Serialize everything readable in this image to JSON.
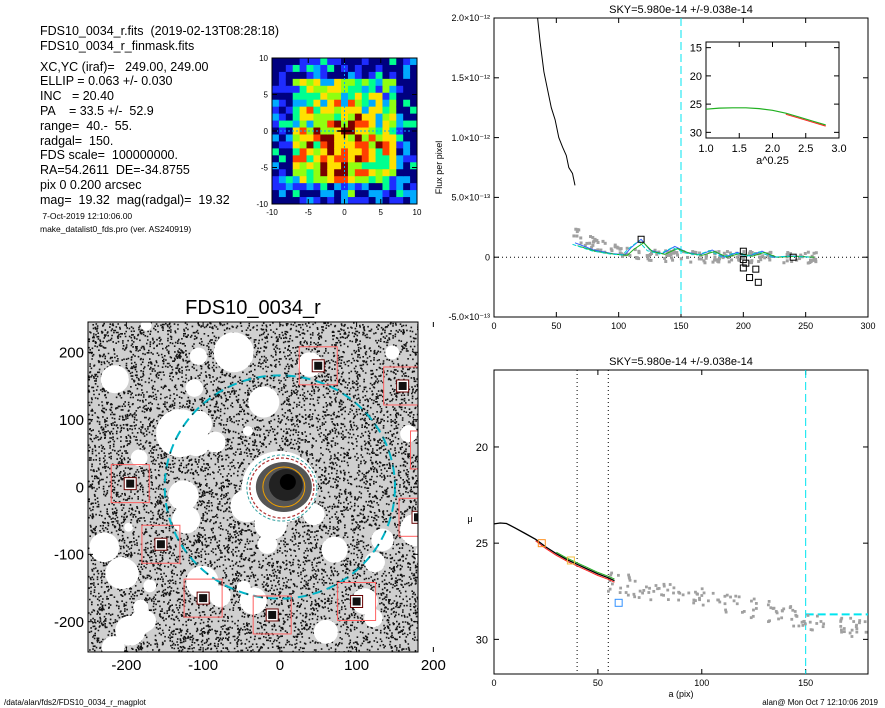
{
  "header_info": {
    "lines_top": [
      "FDS10_0034_r.fits  (2019-02-13T08:28:18)",
      "FDS10_0034_r_finmask.fits"
    ],
    "lines_params": [
      "XC,YC (iraf)=   249.00, 249.00",
      "ELLIP = 0.063 +/- 0.030",
      "INC   = 20.40",
      "PA    = 33.5 +/-  52.9",
      "range=  40.-  55.",
      "radgal=  150.",
      "FDS scale=  100000000.",
      "RA=54.2611  DE=-34.8755",
      "pix 0 0.200 arcsec",
      "mag=  19.32  mag(radgal)=  19.32"
    ],
    "date": " 7-Oct-2019 12:10:06.00",
    "program": "make_datalist0_fds.pro (ver. AS240919)"
  },
  "colors": {
    "sky_line": "#00e5f0",
    "profile_line": "#000000",
    "binned_blue": "#3060ff",
    "binned_green": "#20b020",
    "binned_cyan": "#00d0d0",
    "binned_orange": "#ff9020",
    "red": "#ff2020",
    "scatter_gray": "#a0a0a0",
    "box_red": "#ff6060"
  },
  "chart_data": [
    {
      "id": "thumbnail",
      "type": "heatmap",
      "title": "",
      "xlim": [
        -10,
        10
      ],
      "ylim": [
        -10,
        10
      ],
      "xticks": [
        -10,
        -5,
        0,
        5,
        10
      ],
      "yticks": [
        -10,
        -5,
        0,
        5,
        10
      ],
      "colormap": [
        "#000080",
        "#1e2cff",
        "#00aaff",
        "#00ff90",
        "#90ff10",
        "#ffe000",
        "#ff4000",
        "#7a0000"
      ]
    },
    {
      "id": "image",
      "type": "scatter",
      "title": "FDS10_0034_r",
      "xlim": [
        -250,
        180
      ],
      "ylim": [
        -245,
        245
      ],
      "xticks": [
        -200,
        -100,
        0,
        100,
        200
      ],
      "yticks": [
        -200,
        -100,
        0,
        100,
        200
      ],
      "sky_ellipse_radius": 150,
      "masked_stars": [
        {
          "x": -195,
          "y": 5
        },
        {
          "x": -155,
          "y": -85
        },
        {
          "x": -100,
          "y": -165
        },
        {
          "x": -10,
          "y": -190
        },
        {
          "x": 50,
          "y": 180
        },
        {
          "x": 100,
          "y": -170
        },
        {
          "x": 160,
          "y": 150
        },
        {
          "x": 195,
          "y": 55
        },
        {
          "x": 180,
          "y": -45
        }
      ]
    },
    {
      "id": "flux_profile",
      "type": "line",
      "title": "SKY=5.980e-14 +/-9.038e-14",
      "ylabel": "Flux per pixel",
      "xlim": [
        0,
        300
      ],
      "ylim": [
        -5e-13,
        2e-12
      ],
      "xticks": [
        0,
        50,
        100,
        150,
        200,
        250,
        300
      ],
      "ytick_labels": [
        "2.0×10⁻¹²",
        "1.5×10⁻¹²",
        "1.0×10⁻¹²",
        "5.0×10⁻¹³",
        "0",
        "-5.0×10⁻¹³"
      ],
      "ytick_values": [
        2e-12,
        1.5e-12,
        1e-12,
        5e-13,
        0,
        -5e-13
      ],
      "sky_radius": 150,
      "profile": [
        [
          35,
          2e-12
        ],
        [
          37,
          1.8e-12
        ],
        [
          40,
          1.55e-12
        ],
        [
          43,
          1.4e-12
        ],
        [
          46,
          1.25e-12
        ],
        [
          49,
          1.15e-12
        ],
        [
          52,
          1e-12
        ],
        [
          55,
          9.2e-13
        ],
        [
          58,
          8.5e-13
        ],
        [
          60,
          7.5e-13
        ],
        [
          63,
          7e-13
        ],
        [
          65,
          6e-13
        ]
      ],
      "binned": [
        [
          65,
          1.2e-13
        ],
        [
          80,
          6e-14
        ],
        [
          95,
          3e-14
        ],
        [
          105,
          2e-14
        ],
        [
          110,
          8e-14
        ],
        [
          118,
          1.5e-13
        ],
        [
          125,
          6e-14
        ],
        [
          135,
          3e-14
        ],
        [
          145,
          9e-14
        ],
        [
          155,
          4e-14
        ],
        [
          165,
          2e-14
        ],
        [
          175,
          6e-14
        ],
        [
          185,
          0.0
        ],
        [
          195,
          4e-14
        ],
        [
          205,
          1e-14
        ],
        [
          215,
          5e-14
        ],
        [
          225,
          0.0
        ],
        [
          240,
          1e-14
        ],
        [
          255,
          0.0
        ]
      ],
      "open_squares": [
        [
          118,
          1.5e-13
        ],
        [
          200,
          -2e-14
        ],
        [
          200,
          -9e-14
        ],
        [
          202,
          -5e-14
        ],
        [
          205,
          -1.7e-13
        ],
        [
          210,
          -1e-13
        ],
        [
          212,
          -2.1e-13
        ],
        [
          240,
          0.0
        ],
        [
          200,
          5e-14
        ]
      ],
      "inset": {
        "xlabel": "a^0.25",
        "xlim": [
          1.0,
          3.0
        ],
        "ylim": [
          31,
          14
        ],
        "xticks": [
          1.0,
          1.5,
          2.0,
          2.5,
          3.0
        ],
        "yticks": [
          15,
          20,
          25,
          30
        ],
        "curve": [
          [
            1.0,
            25.9
          ],
          [
            1.2,
            25.7
          ],
          [
            1.4,
            25.65
          ],
          [
            1.6,
            25.65
          ],
          [
            1.8,
            25.8
          ],
          [
            2.0,
            26.1
          ],
          [
            2.2,
            26.6
          ],
          [
            2.4,
            27.3
          ],
          [
            2.6,
            28.0
          ],
          [
            2.8,
            28.7
          ]
        ]
      }
    },
    {
      "id": "mu_profile",
      "type": "line",
      "title": "SKY=5.980e-14 +/-9.038e-14",
      "xlabel": "a (pix)",
      "ylabel": "μ",
      "xlim": [
        0,
        180
      ],
      "ylim": [
        31.8,
        16
      ],
      "xticks": [
        0,
        50,
        100,
        150
      ],
      "yticks": [
        20,
        25,
        30
      ],
      "range_lines": [
        40,
        55
      ],
      "sky_radius": 150,
      "sky_mu": 28.7,
      "profile": [
        [
          0,
          24.0
        ],
        [
          3,
          23.95
        ],
        [
          6,
          23.98
        ],
        [
          10,
          24.2
        ],
        [
          15,
          24.5
        ],
        [
          20,
          24.8
        ],
        [
          25,
          25.2
        ],
        [
          30,
          25.55
        ],
        [
          35,
          25.85
        ],
        [
          40,
          26.1
        ],
        [
          45,
          26.35
        ],
        [
          50,
          26.6
        ],
        [
          55,
          26.8
        ],
        [
          58,
          26.95
        ]
      ],
      "markers": [
        {
          "x": 23,
          "y": 25.0,
          "color": "#ff9020"
        },
        {
          "x": 37,
          "y": 25.9,
          "color": "#f0c040"
        },
        {
          "x": 60,
          "y": 28.1,
          "color": "#3090ff"
        }
      ]
    }
  ],
  "footer": {
    "path": "/data/alan/fds2/FDS10_0034_r_magplot",
    "signature": "alan@  Mon Oct  7 12:10:06 2019"
  }
}
